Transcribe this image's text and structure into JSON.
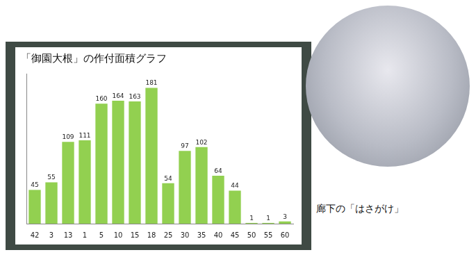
{
  "chart_data": {
    "type": "bar",
    "title": "「御園大根」の作付面積グラフ",
    "categories": [
      "42",
      "3",
      "13",
      "1",
      "5",
      "10",
      "15",
      "18",
      "25",
      "30",
      "35",
      "40",
      "45",
      "50",
      "55",
      "60"
    ],
    "values": [
      45,
      55,
      109,
      111,
      160,
      164,
      163,
      181,
      54,
      97,
      102,
      64,
      44,
      1,
      1,
      3
    ],
    "color": "#92d050",
    "ylim": [
      0,
      200
    ],
    "grid": false,
    "data_labels": true,
    "tick_labels": "x"
  },
  "photo_caption": "廊下の「はさがけ」"
}
